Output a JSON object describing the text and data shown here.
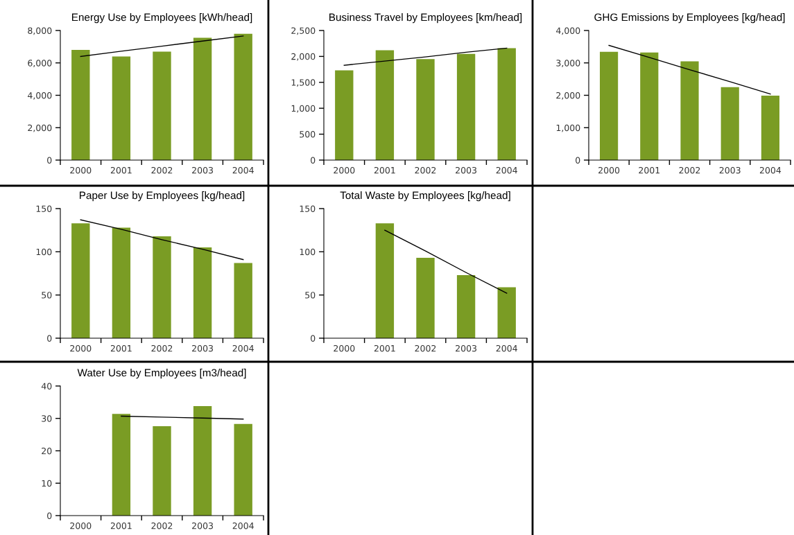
{
  "chart_data": [
    {
      "type": "bar",
      "title": "Energy Use by Employees [kWh/head]",
      "categories": [
        "2000",
        "2001",
        "2002",
        "2003",
        "2004"
      ],
      "ylim": [
        0,
        8000
      ],
      "yticks": [
        0,
        {
          "value": 2000,
          "label": "2,000"
        },
        {
          "value": 4000,
          "label": "4,000"
        },
        {
          "value": 6000,
          "label": "6,000"
        },
        {
          "value": 8000,
          "label": "8,000"
        }
      ],
      "grid": false,
      "series": [
        {
          "color": "#7a9c24",
          "values": [
            6800,
            6400,
            6700,
            7550,
            7800
          ]
        },
        {
          "type": "line",
          "color": "#000000",
          "values": [
            6400,
            6720,
            7030,
            7350,
            7660
          ]
        }
      ]
    },
    {
      "type": "bar",
      "title": "Business Travel by Employees [km/head]",
      "categories": [
        "2000",
        "2001",
        "2002",
        "2003",
        "2004"
      ],
      "ylim": [
        0,
        2500
      ],
      "yticks": [
        0,
        500,
        {
          "value": 1000,
          "label": "1,000"
        },
        {
          "value": 1500,
          "label": "1,500"
        },
        {
          "value": 2000,
          "label": "2,000"
        },
        {
          "value": 2500,
          "label": "2,500"
        }
      ],
      "grid": false,
      "series": [
        {
          "color": "#7a9c24",
          "values": [
            1730,
            2120,
            1950,
            2050,
            2160
          ]
        },
        {
          "type": "line",
          "color": "#000000",
          "values": [
            1830,
            1910,
            1990,
            2080,
            2160
          ]
        }
      ]
    },
    {
      "type": "bar",
      "title": "GHG Emissions by Employees [kg/head]",
      "categories": [
        "2000",
        "2001",
        "2002",
        "2003",
        "2004"
      ],
      "ylim": [
        0,
        4000
      ],
      "yticks": [
        0,
        {
          "value": 1000,
          "label": "1,000"
        },
        {
          "value": 2000,
          "label": "2,000"
        },
        {
          "value": 3000,
          "label": "3,000"
        },
        {
          "value": 4000,
          "label": "4,000"
        }
      ],
      "grid": false,
      "series": [
        {
          "color": "#7a9c24",
          "values": [
            3340,
            3320,
            3050,
            2250,
            1990
          ]
        },
        {
          "type": "line",
          "color": "#000000",
          "values": [
            3540,
            3170,
            2790,
            2420,
            2040
          ]
        }
      ]
    },
    {
      "type": "bar",
      "title": "Paper Use by Employees [kg/head]",
      "categories": [
        "2000",
        "2001",
        "2002",
        "2003",
        "2004"
      ],
      "ylim": [
        0,
        150
      ],
      "yticks": [
        0,
        50,
        100,
        150
      ],
      "grid": false,
      "series": [
        {
          "color": "#7a9c24",
          "values": [
            133,
            128,
            118,
            105,
            87
          ]
        },
        {
          "type": "line",
          "color": "#000000",
          "values": [
            137,
            126,
            114,
            103,
            91
          ]
        }
      ]
    },
    {
      "type": "bar",
      "title": "Total Waste by Employees [kg/head]",
      "categories": [
        "2000",
        "2001",
        "2002",
        "2003",
        "2004"
      ],
      "ylim": [
        0,
        150
      ],
      "yticks": [
        0,
        50,
        100,
        150
      ],
      "grid": false,
      "series": [
        {
          "color": "#7a9c24",
          "values": [
            null,
            133,
            93,
            73,
            59
          ]
        },
        {
          "type": "line",
          "color": "#000000",
          "values": [
            null,
            125,
            101,
            76,
            52
          ]
        }
      ]
    },
    {
      "type": "bar",
      "title": "Water Use by Employees [m3/head]",
      "categories": [
        "2000",
        "2001",
        "2002",
        "2003",
        "2004"
      ],
      "ylim": [
        0,
        40
      ],
      "yticks": [
        0,
        10,
        20,
        30,
        40
      ],
      "grid": false,
      "series": [
        {
          "color": "#7a9c24",
          "values": [
            null,
            31.4,
            27.6,
            33.8,
            28.3
          ]
        },
        {
          "type": "line",
          "color": "#000000",
          "values": [
            null,
            30.7,
            30.4,
            30.1,
            29.8
          ]
        }
      ]
    }
  ]
}
